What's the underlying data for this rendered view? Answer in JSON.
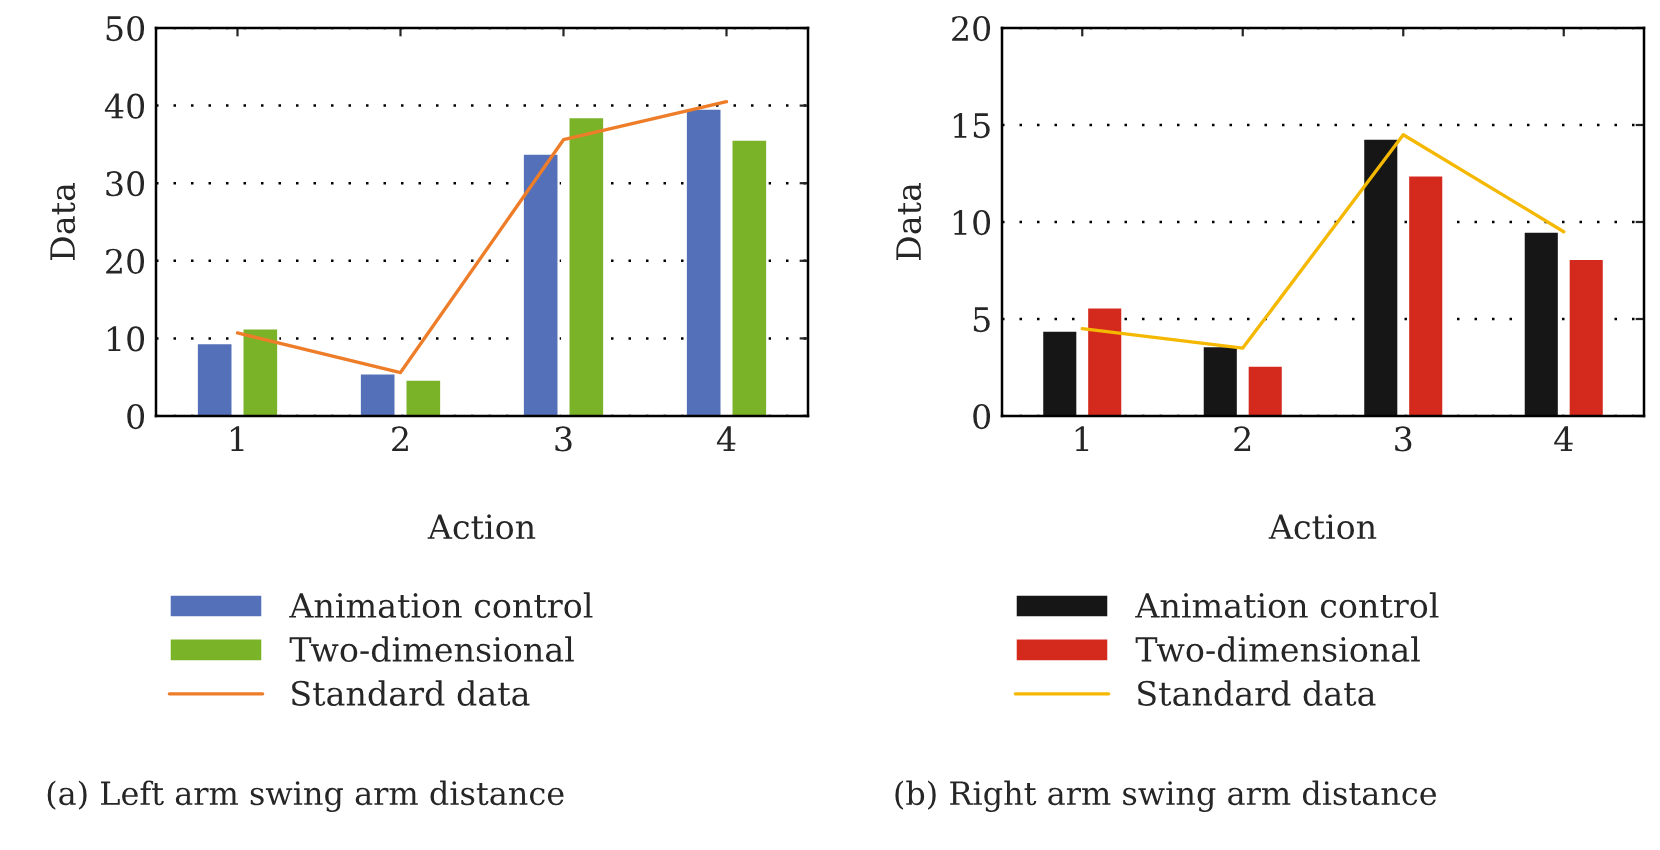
{
  "chart_data": [
    {
      "type": "bar",
      "xlabel": "Action",
      "ylabel": "Data",
      "categories": [
        "1",
        "2",
        "3",
        "4"
      ],
      "ylim": [
        0,
        50
      ],
      "yticks": [
        0,
        10,
        20,
        30,
        40,
        50
      ],
      "grid": "y",
      "legend": "bottom",
      "series": [
        {
          "name": "Animation control",
          "color": "#5470b8",
          "values": [
            9.4,
            5.5,
            33.8,
            39.6
          ]
        },
        {
          "name": "Two-dimensional",
          "color": "#7ab327",
          "values": [
            11.3,
            4.7,
            38.5,
            35.6
          ]
        },
        {
          "name": "Standard data",
          "type": "line",
          "color": "#ee7d2a",
          "values": [
            10.7,
            5.6,
            35.6,
            40.5
          ]
        }
      ],
      "annotations": [
        "(a) Left arm swing arm distance"
      ]
    },
    {
      "type": "bar",
      "xlabel": "Action",
      "ylabel": "Data",
      "categories": [
        "1",
        "2",
        "3",
        "4"
      ],
      "ylim": [
        0,
        20
      ],
      "yticks": [
        0,
        5,
        10,
        15,
        20
      ],
      "grid": "y",
      "legend": "bottom",
      "series": [
        {
          "name": "Animation control",
          "color": "#161616",
          "values": [
            4.4,
            3.6,
            14.3,
            9.5
          ]
        },
        {
          "name": "Two-dimensional",
          "color": "#d42a1e",
          "values": [
            5.6,
            2.6,
            12.4,
            8.1
          ]
        },
        {
          "name": "Standard data",
          "type": "line",
          "color": "#f5b800",
          "values": [
            4.5,
            3.5,
            14.5,
            9.5
          ]
        }
      ],
      "annotations": [
        "(b) Right arm swing arm distance"
      ]
    }
  ]
}
